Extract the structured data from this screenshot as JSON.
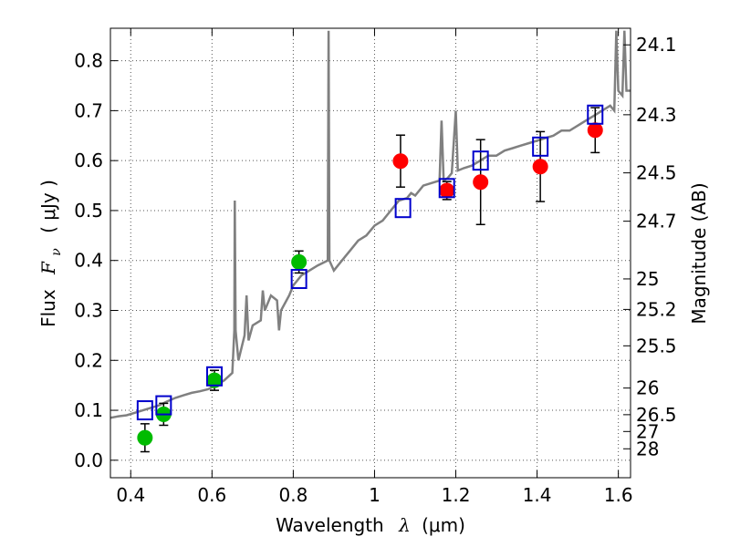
{
  "chart_data": {
    "type": "scatter",
    "xlabel": {
      "prefix": "Wavelength",
      "symbol": "λ",
      "unit": "(μm)"
    },
    "ylabel": {
      "prefix": "Flux",
      "symbol": "F",
      "sub": "ν",
      "unit": "( μJy )"
    },
    "y2label": "Magnitude (AB)",
    "xlim": [
      0.35,
      1.63
    ],
    "ylim": [
      -0.035,
      0.865
    ],
    "grid": true,
    "x_ticks": [
      {
        "value": 0.4,
        "label": "0.4"
      },
      {
        "value": 0.6,
        "label": "0.6"
      },
      {
        "value": 0.8,
        "label": "0.8"
      },
      {
        "value": 1.0,
        "label": "1"
      },
      {
        "value": 1.2,
        "label": "1.2"
      },
      {
        "value": 1.4,
        "label": "1.4"
      },
      {
        "value": 1.6,
        "label": "1.6"
      }
    ],
    "y_ticks": [
      {
        "value": 0.0,
        "label": "0.0"
      },
      {
        "value": 0.1,
        "label": "0.1"
      },
      {
        "value": 0.2,
        "label": "0.2"
      },
      {
        "value": 0.3,
        "label": "0.3"
      },
      {
        "value": 0.4,
        "label": "0.4"
      },
      {
        "value": 0.5,
        "label": "0.5"
      },
      {
        "value": 0.6,
        "label": "0.6"
      },
      {
        "value": 0.7,
        "label": "0.7"
      },
      {
        "value": 0.8,
        "label": "0.8"
      }
    ],
    "mag_ticks": [
      {
        "value": 24.1,
        "label": "24.1"
      },
      {
        "value": 24.3,
        "label": "24.3"
      },
      {
        "value": 24.5,
        "label": "24.5"
      },
      {
        "value": 24.7,
        "label": "24.7"
      },
      {
        "value": 25.0,
        "label": "25"
      },
      {
        "value": 25.2,
        "label": "25.2"
      },
      {
        "value": 25.5,
        "label": "25.5"
      },
      {
        "value": 26.0,
        "label": "26"
      },
      {
        "value": 26.5,
        "label": "26.5"
      },
      {
        "value": 27.0,
        "label": "27"
      },
      {
        "value": 28.0,
        "label": "28"
      }
    ],
    "colors": {
      "model": "#808080",
      "optical": "#00bb00",
      "nir": "#ff0000",
      "synthetic": "#0000cc",
      "errorbar": "#000000",
      "grid": "#555555"
    },
    "series": [
      {
        "name": "model spectrum",
        "kind": "line",
        "points": [
          [
            0.35,
            0.085
          ],
          [
            0.37,
            0.088
          ],
          [
            0.39,
            0.09
          ],
          [
            0.41,
            0.095
          ],
          [
            0.43,
            0.1
          ],
          [
            0.45,
            0.105
          ],
          [
            0.47,
            0.11
          ],
          [
            0.49,
            0.118
          ],
          [
            0.51,
            0.125
          ],
          [
            0.53,
            0.13
          ],
          [
            0.55,
            0.135
          ],
          [
            0.57,
            0.138
          ],
          [
            0.59,
            0.142
          ],
          [
            0.61,
            0.15
          ],
          [
            0.63,
            0.16
          ],
          [
            0.65,
            0.175
          ],
          [
            0.655,
            0.26
          ],
          [
            0.656,
            0.52
          ],
          [
            0.658,
            0.26
          ],
          [
            0.665,
            0.2
          ],
          [
            0.68,
            0.25
          ],
          [
            0.685,
            0.33
          ],
          [
            0.69,
            0.24
          ],
          [
            0.7,
            0.27
          ],
          [
            0.72,
            0.28
          ],
          [
            0.725,
            0.34
          ],
          [
            0.73,
            0.3
          ],
          [
            0.745,
            0.33
          ],
          [
            0.76,
            0.32
          ],
          [
            0.765,
            0.26
          ],
          [
            0.77,
            0.3
          ],
          [
            0.79,
            0.33
          ],
          [
            0.8,
            0.35
          ],
          [
            0.82,
            0.37
          ],
          [
            0.84,
            0.38
          ],
          [
            0.86,
            0.39
          ],
          [
            0.885,
            0.4
          ],
          [
            0.887,
            0.86
          ],
          [
            0.889,
            0.4
          ],
          [
            0.9,
            0.38
          ],
          [
            0.92,
            0.4
          ],
          [
            0.94,
            0.42
          ],
          [
            0.96,
            0.44
          ],
          [
            0.98,
            0.45
          ],
          [
            1.0,
            0.47
          ],
          [
            1.02,
            0.48
          ],
          [
            1.04,
            0.5
          ],
          [
            1.06,
            0.52
          ],
          [
            1.08,
            0.525
          ],
          [
            1.09,
            0.535
          ],
          [
            1.1,
            0.53
          ],
          [
            1.12,
            0.55
          ],
          [
            1.14,
            0.555
          ],
          [
            1.16,
            0.56
          ],
          [
            1.165,
            0.68
          ],
          [
            1.17,
            0.56
          ],
          [
            1.18,
            0.565
          ],
          [
            1.19,
            0.575
          ],
          [
            1.2,
            0.7
          ],
          [
            1.205,
            0.58
          ],
          [
            1.22,
            0.585
          ],
          [
            1.24,
            0.59
          ],
          [
            1.26,
            0.6
          ],
          [
            1.28,
            0.61
          ],
          [
            1.3,
            0.61
          ],
          [
            1.32,
            0.62
          ],
          [
            1.34,
            0.625
          ],
          [
            1.36,
            0.63
          ],
          [
            1.38,
            0.635
          ],
          [
            1.4,
            0.64
          ],
          [
            1.42,
            0.645
          ],
          [
            1.44,
            0.65
          ],
          [
            1.46,
            0.66
          ],
          [
            1.48,
            0.66
          ],
          [
            1.5,
            0.67
          ],
          [
            1.52,
            0.68
          ],
          [
            1.54,
            0.69
          ],
          [
            1.56,
            0.7
          ],
          [
            1.58,
            0.71
          ],
          [
            1.59,
            0.7
          ],
          [
            1.595,
            0.86
          ],
          [
            1.6,
            0.74
          ],
          [
            1.61,
            0.73
          ],
          [
            1.615,
            0.86
          ],
          [
            1.62,
            0.74
          ],
          [
            1.63,
            0.74
          ]
        ]
      },
      {
        "name": "optical photometry",
        "kind": "points",
        "points": [
          {
            "x": 0.435,
            "y": 0.045,
            "err": 0.028
          },
          {
            "x": 0.481,
            "y": 0.092,
            "err": 0.022
          },
          {
            "x": 0.606,
            "y": 0.16,
            "err": 0.02
          },
          {
            "x": 0.814,
            "y": 0.397,
            "err": 0.022
          }
        ]
      },
      {
        "name": "near-IR photometry",
        "kind": "points",
        "points": [
          {
            "x": 1.064,
            "y": 0.599,
            "err": 0.052
          },
          {
            "x": 1.178,
            "y": 0.54,
            "err": 0.018
          },
          {
            "x": 1.261,
            "y": 0.557,
            "err": 0.085
          },
          {
            "x": 1.408,
            "y": 0.588,
            "err": 0.07
          },
          {
            "x": 1.543,
            "y": 0.661,
            "err": 0.045
          }
        ]
      },
      {
        "name": "synthetic photometry",
        "kind": "squares",
        "points": [
          {
            "x": 0.435,
            "y": 0.1
          },
          {
            "x": 0.481,
            "y": 0.11
          },
          {
            "x": 0.606,
            "y": 0.168
          },
          {
            "x": 0.814,
            "y": 0.363
          },
          {
            "x": 1.07,
            "y": 0.505
          },
          {
            "x": 1.178,
            "y": 0.545
          },
          {
            "x": 1.261,
            "y": 0.6
          },
          {
            "x": 1.408,
            "y": 0.628
          },
          {
            "x": 1.543,
            "y": 0.692
          }
        ]
      }
    ]
  }
}
